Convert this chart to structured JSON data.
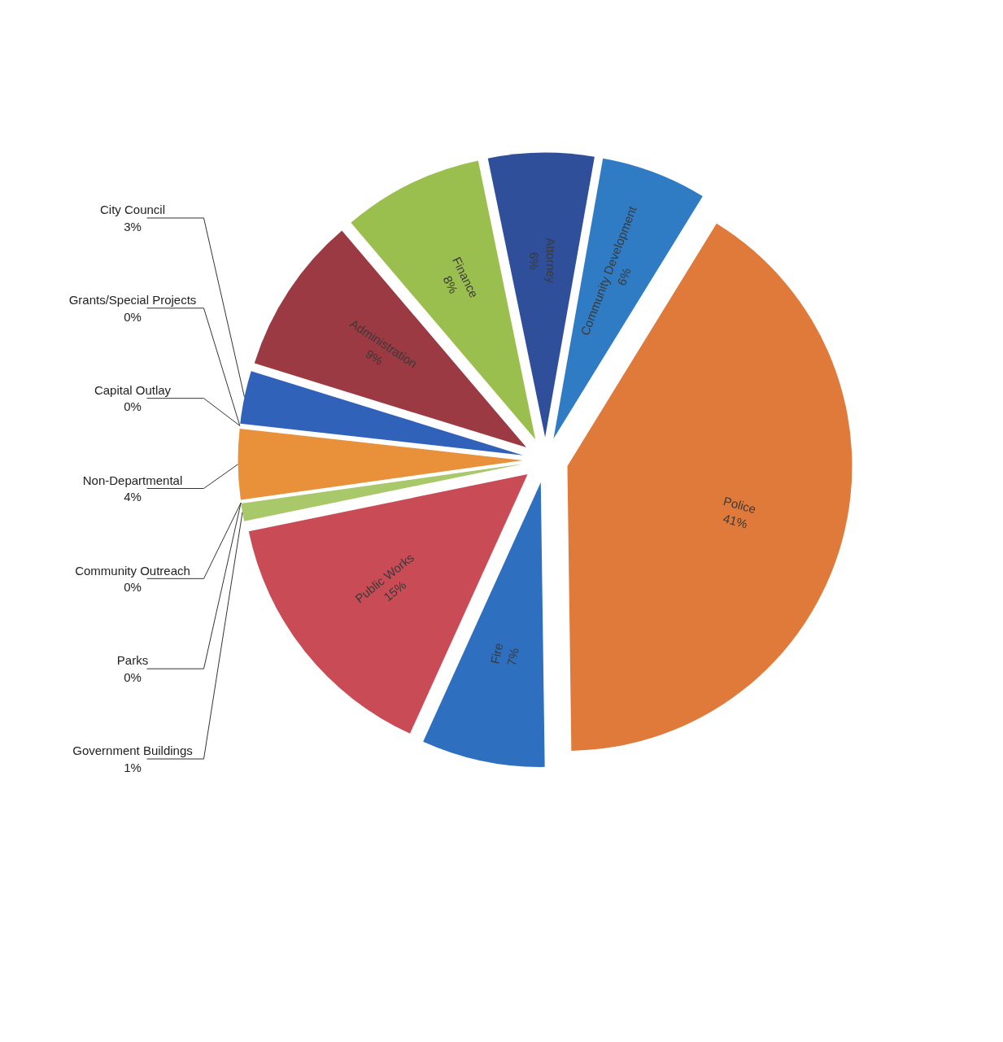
{
  "chart_data": {
    "type": "pie",
    "categories": [
      "Community Development",
      "Police",
      "Fire",
      "Public Works",
      "Government Buildings",
      "Parks",
      "Community Outreach",
      "Non-Departmental",
      "Capital Outlay",
      "Grants/Special Projects",
      "City Council",
      "Administration",
      "Finance",
      "Attorney"
    ],
    "values": [
      6,
      41,
      7,
      15,
      1,
      0,
      0,
      4,
      0,
      0,
      3,
      9,
      8,
      6
    ],
    "value_labels": [
      "6%",
      "41%",
      "7%",
      "15%",
      "1%",
      "0%",
      "0%",
      "4%",
      "0%",
      "0%",
      "3%",
      "9%",
      "8%",
      "6%"
    ],
    "colors": [
      "#2f7cc4",
      "#e07a3a",
      "#2e6fc0",
      "#c84b55",
      "#a8c86a",
      "#8a74b0",
      "#3a86c8",
      "#e8913a",
      "#4a7ac0",
      "#c05050",
      "#2f62b8",
      "#9b3a42",
      "#9bbf4e",
      "#2f4f9a"
    ],
    "data_labels": true
  }
}
